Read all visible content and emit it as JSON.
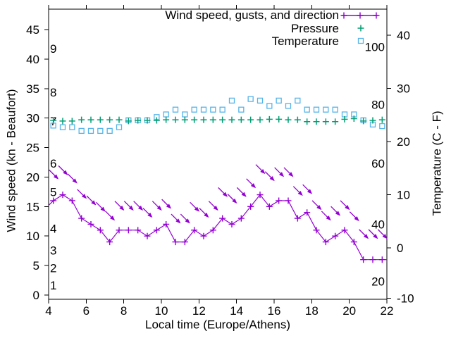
{
  "chart_data": {
    "type": "line",
    "title": "",
    "xlabel": "Local time (Europe/Athens)",
    "ylabel": "Wind speed (kn - Beaufort)",
    "y2label": "Temperature (C - F)",
    "xlim": [
      4,
      22
    ],
    "ylim": [
      -0.7,
      48.6
    ],
    "y2lim": [
      -9.7,
      45.1
    ],
    "xticks": [
      4,
      6,
      8,
      10,
      12,
      14,
      16,
      18,
      20,
      22
    ],
    "yticks": [
      0,
      5,
      10,
      15,
      20,
      25,
      30,
      35,
      40,
      45
    ],
    "y2ticks": [
      -10,
      0,
      10,
      20,
      30,
      40
    ],
    "grid": false,
    "legend_position": "top-right-inside",
    "x": [
      4.25,
      4.75,
      5.25,
      5.75,
      6.25,
      6.75,
      7.25,
      7.75,
      8.25,
      8.75,
      9.25,
      9.75,
      10.25,
      10.75,
      11.25,
      11.75,
      12.25,
      12.75,
      13.25,
      13.75,
      14.25,
      14.75,
      15.25,
      15.75,
      16.25,
      16.75,
      17.25,
      17.75,
      18.25,
      18.75,
      19.25,
      19.75,
      20.25,
      20.75,
      21.25,
      21.75
    ],
    "series": [
      {
        "name": "Wind speed, gusts, and direction",
        "marker": "line-with-plus",
        "color": "#9400D3",
        "axis": "left",
        "values": [
          16,
          17,
          16,
          13,
          12,
          11,
          9,
          11,
          11,
          11,
          10,
          11,
          12,
          9,
          9,
          11,
          10,
          11,
          13,
          12,
          13,
          15,
          17,
          15,
          16,
          16,
          13,
          14,
          11,
          9,
          10,
          11,
          9,
          6,
          6,
          6
        ],
        "gusts": [
          20.5,
          21.2,
          19.8,
          17.2,
          16.1,
          15,
          13.5,
          15.2,
          15.2,
          15.2,
          14,
          15.2,
          15.5,
          13,
          13,
          15,
          14,
          15.2,
          17.5,
          16.4,
          17.5,
          19,
          21.4,
          20.2,
          20.9,
          20.9,
          17.7,
          18,
          15.3,
          13.5,
          14.3,
          15.3,
          13.4,
          10.4,
          10.4,
          10.4
        ],
        "gust_arrow_direction": "down-right",
        "edge_start": [
          4,
          15.2
        ],
        "edge_end": [
          22,
          6
        ]
      },
      {
        "name": "Pressure",
        "marker": "plus",
        "color": "#009E73",
        "axis": "left",
        "values": [
          29.6,
          29.5,
          29.5,
          29.7,
          29.7,
          29.7,
          29.7,
          29.7,
          29.5,
          29.6,
          29.6,
          29.6,
          29.7,
          29.7,
          29.7,
          29.7,
          29.7,
          29.7,
          29.7,
          29.7,
          29.7,
          29.7,
          29.7,
          29.8,
          29.8,
          29.7,
          29.7,
          29.4,
          29.4,
          29.4,
          29.4,
          29.8,
          29.9,
          29.5,
          29.6,
          29.7
        ]
      },
      {
        "name": "Temperature",
        "marker": "open-square",
        "color": "#56B4E9",
        "axis": "right",
        "values": [
          23,
          22.7,
          22.7,
          22,
          22,
          22,
          22,
          22.7,
          24,
          24,
          24,
          24.6,
          25.1,
          26,
          25.1,
          26,
          26,
          26,
          26,
          27.7,
          26,
          28,
          27.7,
          26.7,
          27.7,
          26.7,
          27.7,
          26,
          26,
          26,
          26,
          25.1,
          25.1,
          24,
          23.2,
          22.9
        ]
      }
    ],
    "beaufort_scale_labels": [
      {
        "label": "1",
        "kn": 1.7
      },
      {
        "label": "2",
        "kn": 4.6
      },
      {
        "label": "3",
        "kn": 7.6
      },
      {
        "label": "4",
        "kn": 11.3
      },
      {
        "label": "5",
        "kn": 17.5
      },
      {
        "label": "6",
        "kn": 22.3
      },
      {
        "label": "7",
        "kn": 29.5
      },
      {
        "label": "8",
        "kn": 34.4
      },
      {
        "label": "9",
        "kn": 41.8
      }
    ],
    "right_inner_labels": [
      {
        "label": "20",
        "kn": 2.3
      },
      {
        "label": "40",
        "kn": 12.0
      },
      {
        "label": "60",
        "kn": 22.3
      },
      {
        "label": "80",
        "kn": 32.3
      },
      {
        "label": "100",
        "kn": 42.1
      }
    ]
  },
  "colors": {
    "background": "#ffffff",
    "axis": "#000000",
    "text": "#000000",
    "wind": "#9400D3",
    "pressure": "#009E73",
    "temperature": "#56B4E9"
  }
}
